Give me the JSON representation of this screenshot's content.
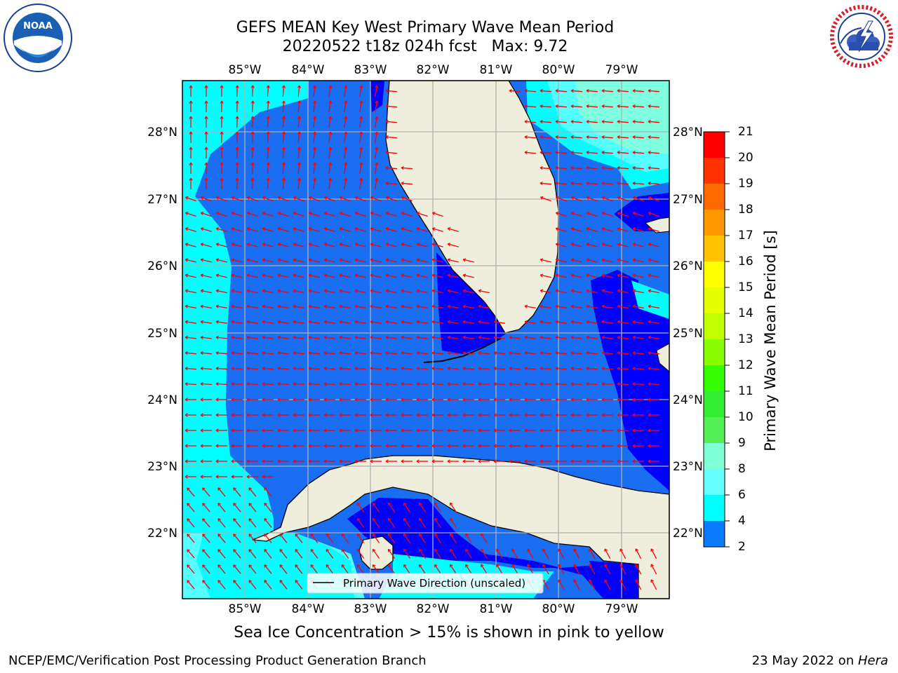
{
  "title": {
    "line1": "GEFS MEAN Key West Primary Wave Mean Period",
    "line2": "20220522 t18z 024h fcst   Max: 9.72"
  },
  "map": {
    "lon_labels": [
      "85°W",
      "84°W",
      "83°W",
      "82°W",
      "81°W",
      "80°W",
      "79°W"
    ],
    "lat_labels": [
      "28°N",
      "27°N",
      "26°N",
      "25°N",
      "24°N",
      "23°N",
      "22°N"
    ],
    "legend_text": "Primary Wave Direction (unscaled)",
    "colors": {
      "ocean_deep": "#1a6ef2",
      "ocean_mid": "#00e5ff",
      "ocean_light": "#55ffff",
      "ocean_pale": "#7fffe0",
      "low_period": "#0000ff",
      "land": "#efeddc",
      "arrow": "#ff0000",
      "grid": "#b0b0b0"
    }
  },
  "colorbar": {
    "label": "Primary Wave Mean Period [s]",
    "ticks": [
      "21",
      "20",
      "19",
      "18",
      "17",
      "16",
      "15",
      "14",
      "13",
      "12",
      "11",
      "10",
      "9",
      "8",
      "6",
      "4",
      "2"
    ],
    "colors": [
      "#ff0000",
      "#ff3300",
      "#ff6a00",
      "#ff9900",
      "#ffc300",
      "#ffff00",
      "#e4ff00",
      "#bfff00",
      "#88ff00",
      "#33ff00",
      "#33ee33",
      "#55ee55",
      "#7fffd4",
      "#66ffff",
      "#00ffff",
      "#0a7aff",
      "#0000ff"
    ]
  },
  "ice_note": "Sea Ice Concentration > 15% is shown in pink to yellow",
  "footer": {
    "left": "NCEP/EMC/Verification Post Processing Product Generation Branch",
    "date": "23 May 2022 on ",
    "host": "Hera"
  },
  "logos": {
    "noaa": "NOAA",
    "nws": "NATIONAL WEATHER SERVICE"
  }
}
